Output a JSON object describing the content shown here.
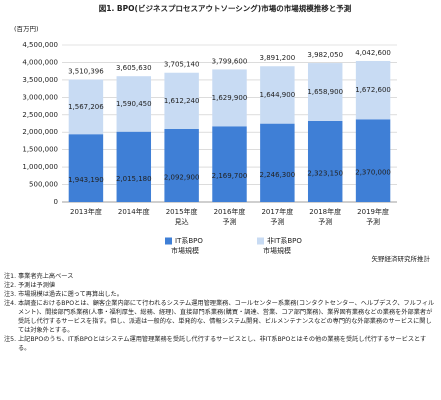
{
  "chart_data": {
    "type": "stacked_bar",
    "title": "図1. BPO(ビジネスプロセスアウトソーシング)市場の市場規模推移と予測",
    "y_unit": "(百万円)",
    "categories": [
      "2013年度",
      "2014年度",
      "2015年度",
      "2016年度",
      "2017年度",
      "2018年度",
      "2019年度"
    ],
    "category_notes": [
      null,
      null,
      "見込",
      "予測",
      "予測",
      "予測",
      "予測"
    ],
    "series": [
      {
        "name": "IT系BPO",
        "legend_sub": "市場規模",
        "color": "#3f7fd6",
        "values": [
          1943190,
          2015180,
          2092900,
          2169700,
          2246300,
          2323150,
          2370000
        ],
        "value_labels": [
          "1,943,190",
          "2,015,180",
          "2,092,900",
          "2,169,700",
          "2,246,300",
          "2,323,150",
          "2,370,000"
        ]
      },
      {
        "name": "非IT系BPO",
        "legend_sub": "市場規模",
        "color": "#c8dbf3",
        "values": [
          1567206,
          1590450,
          1612240,
          1629900,
          1644900,
          1658900,
          1672600
        ],
        "value_labels": [
          "1,567,206",
          "1,590,450",
          "1,612,240",
          "1,629,900",
          "1,644,900",
          "1,658,900",
          "1,672,600"
        ]
      }
    ],
    "totals": [
      3510396,
      3605630,
      3705140,
      3799600,
      3891200,
      3982050,
      4042600
    ],
    "total_labels": [
      "3,510,396",
      "3,605,630",
      "3,705,140",
      "3,799,600",
      "3,891,200",
      "3,982,050",
      "4,042,600"
    ],
    "ylim": [
      0,
      4500000
    ],
    "yticks": [
      {
        "value": 0,
        "label": "0"
      },
      {
        "value": 500000,
        "label": "500,000"
      },
      {
        "value": 1000000,
        "label": "1,000,000"
      },
      {
        "value": 1500000,
        "label": "1,500,000"
      },
      {
        "value": 2000000,
        "label": "2,000,000"
      },
      {
        "value": 2500000,
        "label": "2,500,000"
      },
      {
        "value": 3000000,
        "label": "3,000,000"
      },
      {
        "value": 3500000,
        "label": "3,500,000"
      },
      {
        "value": 4000000,
        "label": "4,000,000"
      },
      {
        "value": 4500000,
        "label": "4,500,000"
      }
    ],
    "grid": true,
    "source": "矢野経済研究所推計"
  },
  "notes": [
    {
      "label": "注1.",
      "text": "事業者売上高ベース"
    },
    {
      "label": "注2.",
      "text": "予測は予測値"
    },
    {
      "label": "注3.",
      "text": "市場規模は過去に遡って再算出した。"
    },
    {
      "label": "注4.",
      "text": "本調査におけるBPOとは、顧客企業内部にて行われるシステム運用管理業務、コールセンター系業務(コンタクトセンター、ヘルプデスク、フルフィルメント)、間接部門系業務(人事・福利厚生、総務、経理)、直接部門系業務(購買・調達、営業、コア部門業務)、業界固有業務などの業務を外部業者が受託し代行するサービスを指す。但し、派遣は一般的な、単発的な、情報システム開発、ビルメンテナンスなどの専門的な外部業務のサービスに関しては対象外とする。"
    },
    {
      "label": "注5.",
      "text": "上記BPOのうち、IT系BPOとはシステム運用管理業務を受託し代行するサービスとし、非IT系BPOとはその他の業務を受託し代行するサービスとする。"
    }
  ]
}
